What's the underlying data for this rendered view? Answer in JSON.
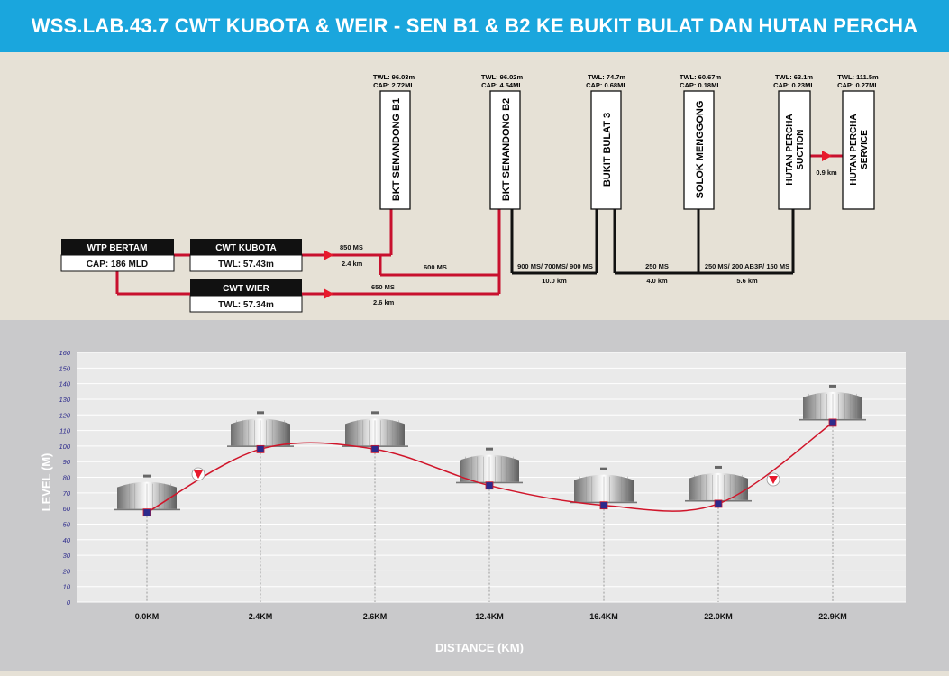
{
  "title": "WSS.LAB.43.7 CWT KUBOTA & WEIR - SEN B1 & B2 KE BUKIT BULAT DAN HUTAN PERCHA",
  "schematic": {
    "sources": [
      {
        "name": "WTP BERTAM",
        "info": "CAP: 186 MLD"
      },
      {
        "name": "CWT KUBOTA",
        "info": "TWL: 57.43m"
      },
      {
        "name": "CWT WIER",
        "info": "TWL: 57.34m"
      }
    ],
    "reservoirs": [
      {
        "name": "BKT SENANDONG B1",
        "twl": "TWL: 96.03m",
        "cap": "CAP: 2.72ML"
      },
      {
        "name": "BKT SENANDONG B2",
        "twl": "TWL: 96.02m",
        "cap": "CAP: 4.54ML"
      },
      {
        "name": "BUKIT BULAT 3",
        "twl": "TWL: 74.7m",
        "cap": "CAP: 0.68ML"
      },
      {
        "name": "SOLOK MENGGONG",
        "twl": "TWL: 60.67m",
        "cap": "CAP: 0.18ML"
      },
      {
        "name": "HUTAN PERCHA SUCTION",
        "line1": "HUTAN PERCHA",
        "line2": "SUCTION",
        "twl": "TWL: 63.1m",
        "cap": "CAP: 0.23ML"
      },
      {
        "name": "HUTAN PERCHA SERVICE",
        "line1": "HUTAN PERCHA",
        "line2": "SERVICE",
        "twl": "TWL: 111.5m",
        "cap": "CAP: 0.27ML"
      }
    ],
    "pipes": {
      "kubota_pipe": "850 MS",
      "kubota_len": "2.4 km",
      "b1_b2_pipe": "600 MS",
      "wier_pipe": "650 MS",
      "wier_len": "2.6 km",
      "b2_bb3_pipe": "900 MS/ 700MS/ 900 MS",
      "b2_bb3_len": "10.0 km",
      "bb3_sm_pipe": "250 MS",
      "bb3_sm_len": "4.0 km",
      "sm_hp_pipe": "250 MS/ 200 AB3P/ 150 MS",
      "sm_hp_len": "5.6 km",
      "hp_len": "0.9 km"
    },
    "colors": {
      "pipe_red": "#c8102e",
      "pipe_black": "#111111",
      "pump": "#e8192c"
    },
    "icons": [
      "pump-icon"
    ]
  },
  "chart_data": {
    "type": "line",
    "xlabel": "DISTANCE (KM)",
    "ylabel": "LEVEL (M)",
    "ylim": [
      0,
      160
    ],
    "yticks": [
      0,
      10,
      20,
      30,
      40,
      50,
      60,
      70,
      80,
      90,
      100,
      110,
      120,
      130,
      140,
      150,
      160
    ],
    "categories": [
      "0.0KM",
      "2.4KM",
      "2.6KM",
      "12.4KM",
      "16.4KM",
      "22.0KM",
      "22.9KM"
    ],
    "values": [
      57.4,
      98,
      98,
      74.7,
      62,
      63,
      115
    ],
    "grid": true,
    "icons": [
      "tank-icon",
      "pump-icon"
    ],
    "colors": {
      "line": "#d0152a",
      "marker": "#2c2a8c",
      "grid": "#ffffff",
      "plot_bg": "#eaeaea"
    }
  }
}
